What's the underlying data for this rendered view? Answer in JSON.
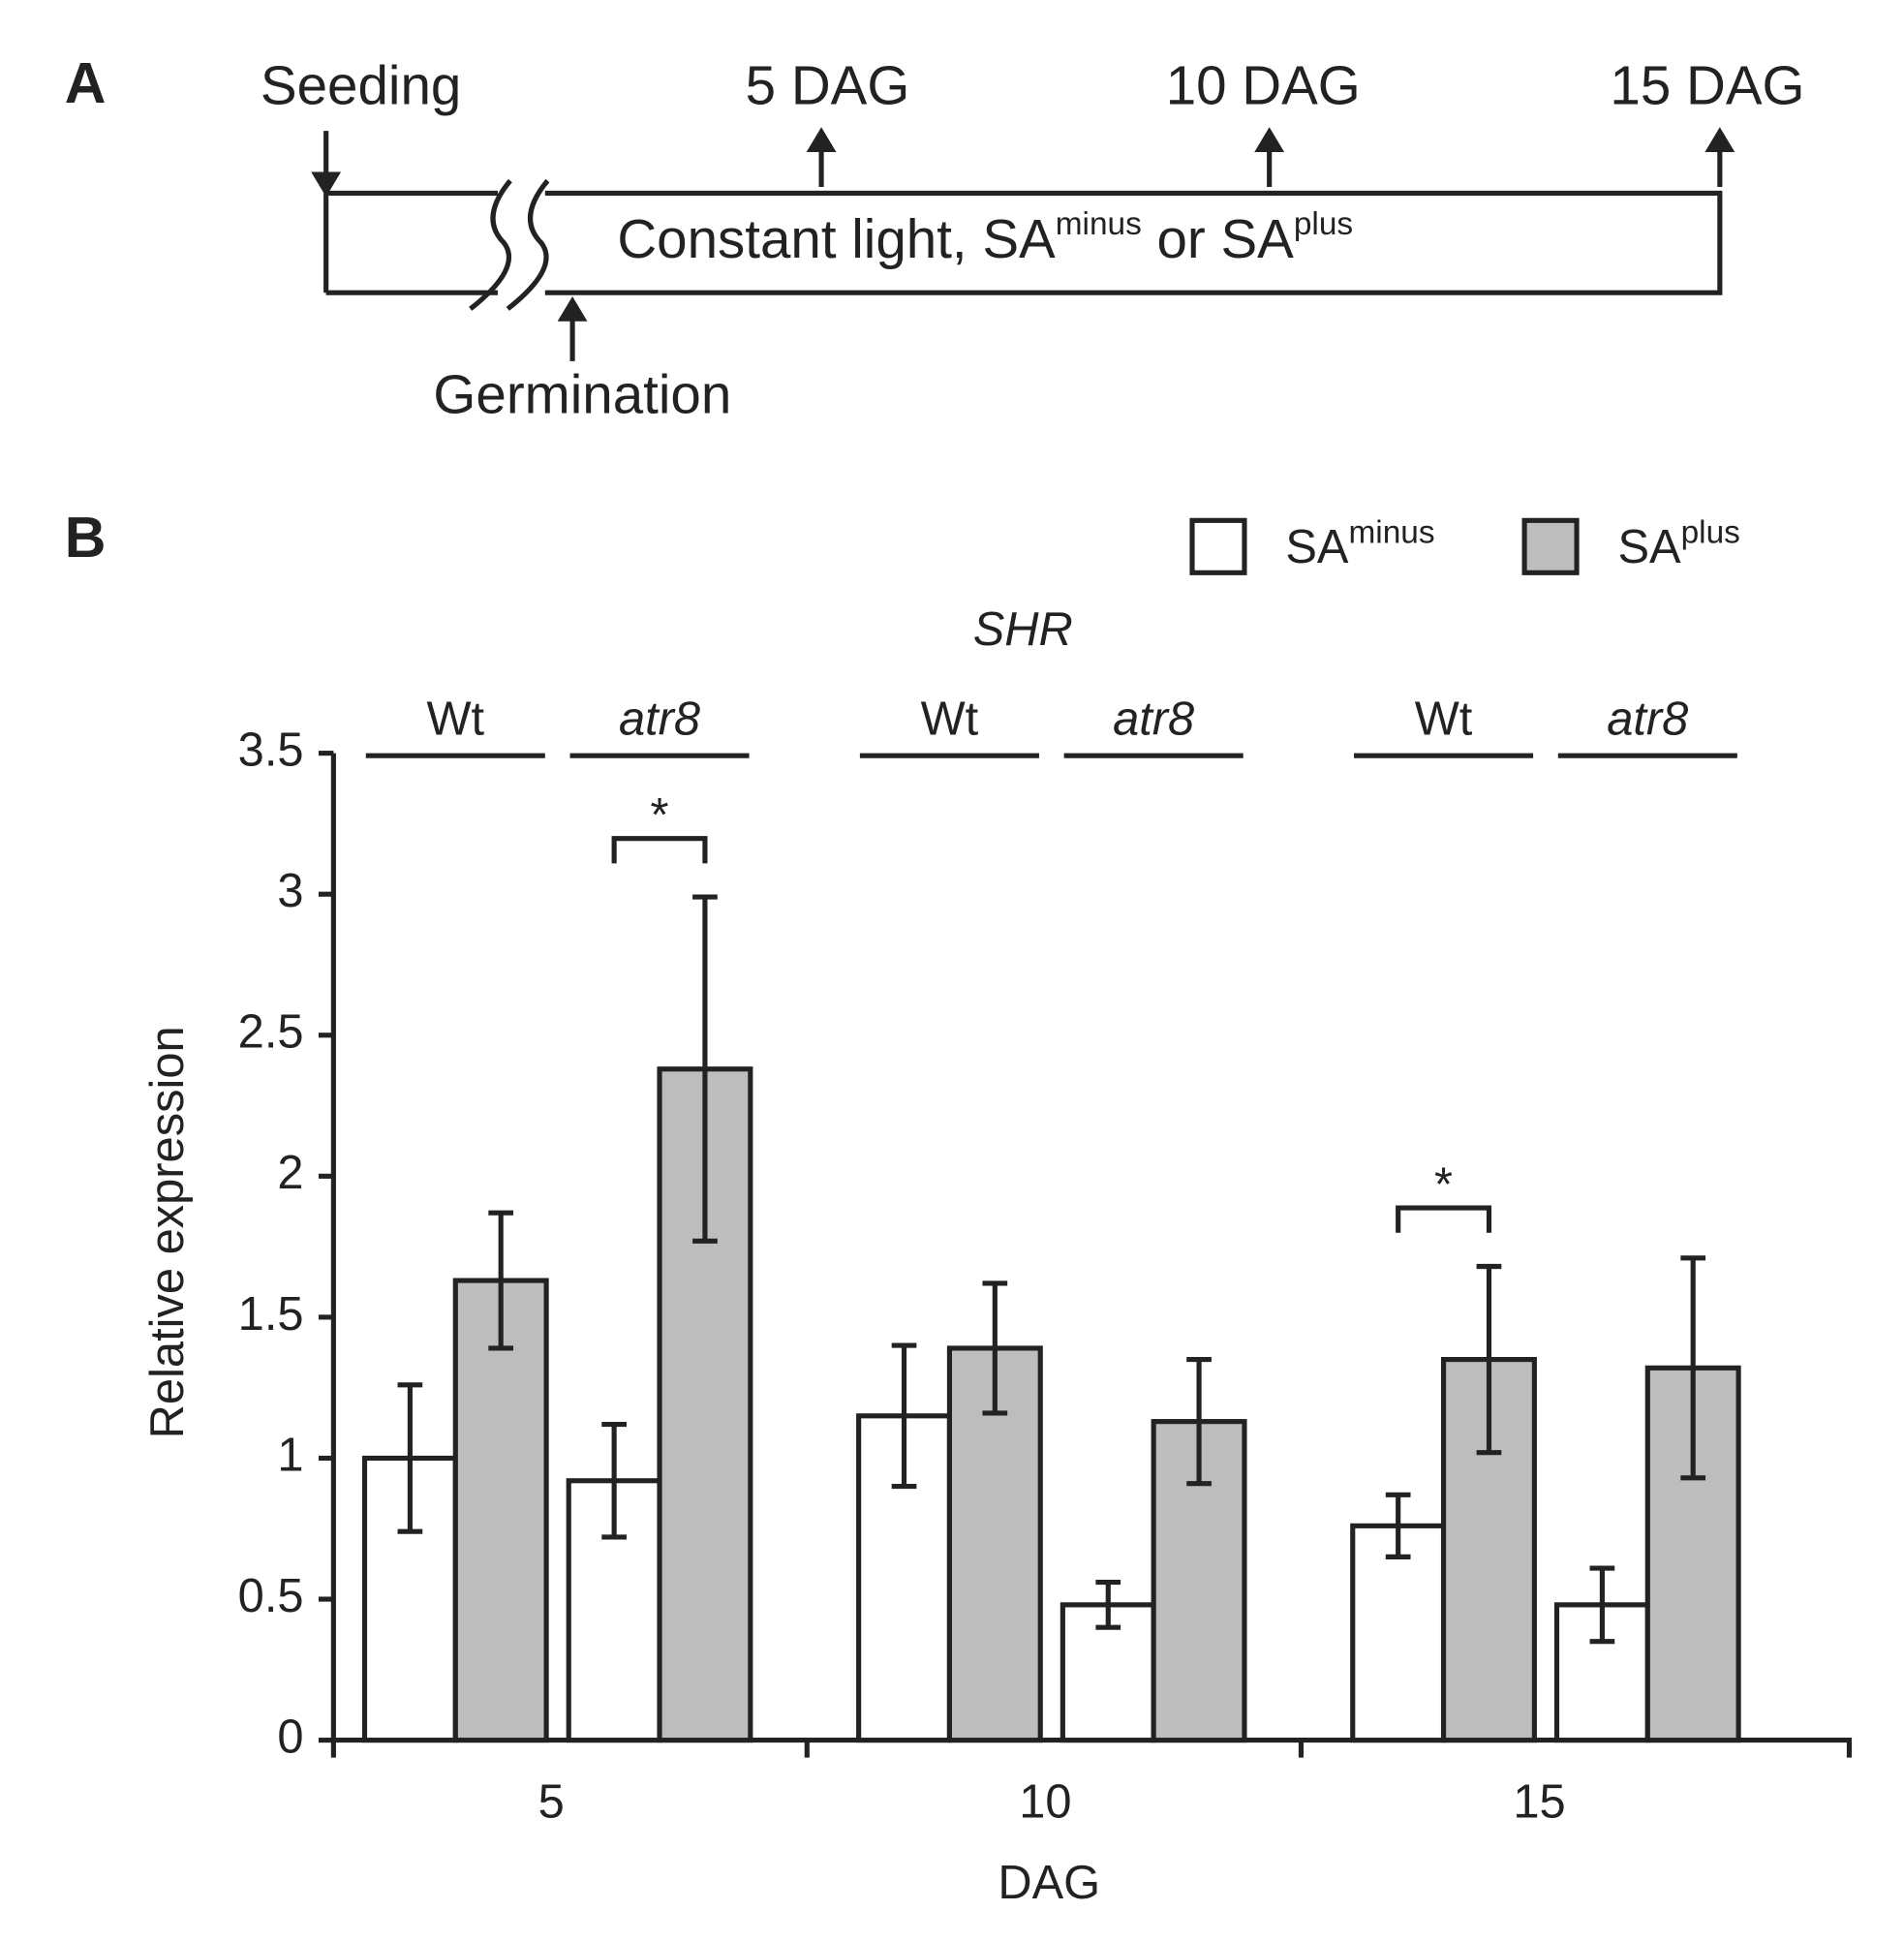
{
  "panel_a": {
    "label": "A",
    "seeding": "Seeding",
    "timepoints": [
      "5 DAG",
      "10 DAG",
      "15 DAG"
    ],
    "germination": "Germination",
    "condition": [
      "Constant light, SA",
      "minus",
      " or SA",
      "plus"
    ]
  },
  "chart_data": {
    "type": "bar",
    "panel_label": "B",
    "title": "SHR",
    "y_label": "Relative expression",
    "x_label": "DAG",
    "groups": [
      "5",
      "10",
      "15"
    ],
    "categories": [
      "Wt",
      "atr8",
      "Wt",
      "atr8",
      "Wt",
      "atr8"
    ],
    "series": [
      {
        "name": "SA",
        "superscript": "minus",
        "color": "#ffffff",
        "values": [
          1.0,
          0.92,
          1.15,
          0.48,
          0.76,
          0.48
        ],
        "errors": [
          0.26,
          0.2,
          0.25,
          0.08,
          0.11,
          0.13
        ]
      },
      {
        "name": "SA",
        "superscript": "plus",
        "color": "#bdbdbd",
        "values": [
          1.63,
          2.38,
          1.39,
          1.13,
          1.35,
          1.32
        ],
        "errors": [
          0.24,
          0.61,
          0.23,
          0.22,
          0.33,
          0.39
        ]
      }
    ],
    "annotations": [
      {
        "text": "*",
        "category": 1
      },
      {
        "text": "*",
        "category": 4
      }
    ],
    "ylim": [
      0,
      3.5
    ],
    "yticks": [
      0,
      0.5,
      1,
      1.5,
      2,
      2.5,
      3,
      3.5
    ]
  }
}
